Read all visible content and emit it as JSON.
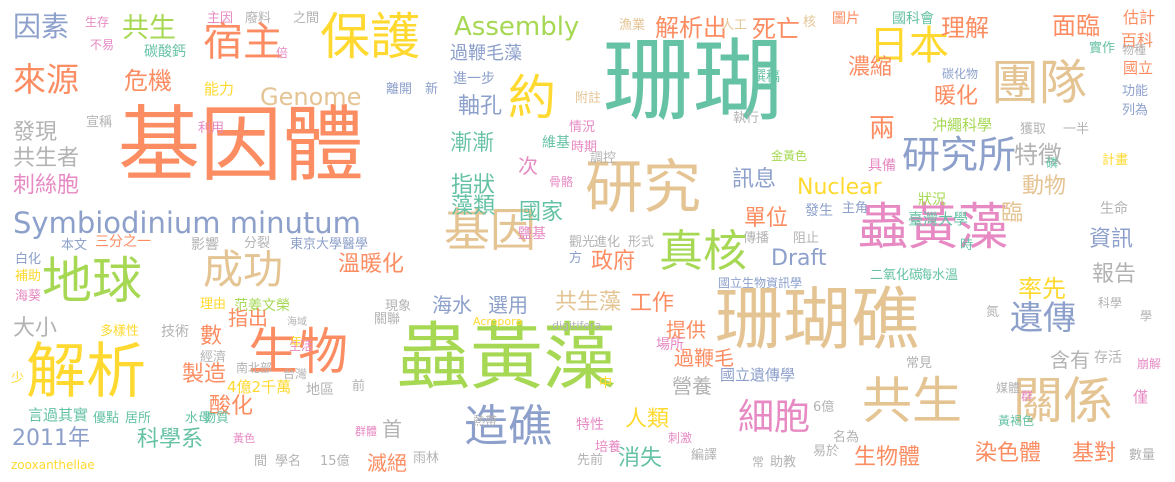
{
  "palette": {
    "orange": "#FC8D62",
    "green": "#66C2A5",
    "blue": "#8DA0CB",
    "pink": "#E78AC3",
    "lime": "#A6D854",
    "yellow": "#FFD92F",
    "tan": "#E5C494",
    "gray": "#B3B3B3"
  },
  "words": [
    {
      "text": "基因體",
      "color": "orange"
    },
    {
      "text": "珊瑚",
      "color": "green"
    },
    {
      "text": "珊瑚礁",
      "color": "tan"
    },
    {
      "text": "蟲黃藻",
      "color": "lime"
    },
    {
      "text": "蟲黃藻",
      "color": "pink"
    },
    {
      "text": "保護",
      "color": "yellow"
    },
    {
      "text": "宿主",
      "color": "orange"
    },
    {
      "text": "約",
      "color": "yellow"
    },
    {
      "text": "研究",
      "color": "tan"
    },
    {
      "text": "共生",
      "color": "tan"
    },
    {
      "text": "關係",
      "color": "tan"
    },
    {
      "text": "生物",
      "color": "orange"
    },
    {
      "text": "解析",
      "color": "yellow"
    },
    {
      "text": "地球",
      "color": "lime"
    },
    {
      "text": "團隊",
      "color": "tan"
    },
    {
      "text": "日本",
      "color": "yellow"
    },
    {
      "text": "研究所",
      "color": "blue"
    },
    {
      "text": "基因",
      "color": "tan"
    },
    {
      "text": "成功",
      "color": "tan"
    },
    {
      "text": "造礁",
      "color": "blue"
    },
    {
      "text": "細胞",
      "color": "pink"
    },
    {
      "text": "遺傳",
      "color": "blue"
    },
    {
      "text": "來源",
      "color": "orange"
    },
    {
      "text": "因素",
      "color": "blue"
    },
    {
      "text": "共生",
      "color": "lime"
    },
    {
      "text": "危機",
      "color": "orange"
    },
    {
      "text": "發現",
      "color": "gray"
    },
    {
      "text": "共生者",
      "color": "gray"
    },
    {
      "text": "刺絲胞",
      "color": "pink"
    },
    {
      "text": "Symbiodinium minutum",
      "color": "blue"
    },
    {
      "text": "Assembly",
      "color": "lime"
    },
    {
      "text": "Genome",
      "color": "tan"
    },
    {
      "text": "過鞭毛藻",
      "color": "blue"
    },
    {
      "text": "解析出",
      "color": "orange"
    },
    {
      "text": "死亡",
      "color": "orange"
    },
    {
      "text": "理解",
      "color": "orange"
    },
    {
      "text": "面臨",
      "color": "orange"
    },
    {
      "text": "估計",
      "color": "orange"
    },
    {
      "text": "百科",
      "color": "orange"
    },
    {
      "text": "生存",
      "color": "pink"
    },
    {
      "text": "不易",
      "color": "pink"
    },
    {
      "text": "碳酸鈣",
      "color": "green"
    },
    {
      "text": "主因",
      "color": "pink"
    },
    {
      "text": "廢料",
      "color": "gray"
    },
    {
      "text": "之間",
      "color": "gray"
    },
    {
      "text": "能力",
      "color": "yellow"
    },
    {
      "text": "倍",
      "color": "pink"
    },
    {
      "text": "宣稱",
      "color": "gray"
    },
    {
      "text": "利用",
      "color": "pink"
    },
    {
      "text": "漁業",
      "color": "tan"
    },
    {
      "text": "人工",
      "color": "tan"
    },
    {
      "text": "核",
      "color": "tan"
    },
    {
      "text": "圖片",
      "color": "orange"
    },
    {
      "text": "國科會",
      "color": "green"
    },
    {
      "text": "實作",
      "color": "green"
    },
    {
      "text": "物種",
      "color": "gray"
    },
    {
      "text": "撰稿",
      "color": "green"
    },
    {
      "text": "濃縮",
      "color": "orange"
    },
    {
      "text": "碳化物",
      "color": "blue"
    },
    {
      "text": "國立",
      "color": "orange"
    },
    {
      "text": "功能",
      "color": "blue"
    },
    {
      "text": "列為",
      "color": "blue"
    },
    {
      "text": "暖化",
      "color": "orange"
    },
    {
      "text": "兩",
      "color": "orange"
    },
    {
      "text": "沖繩科學",
      "color": "lime"
    },
    {
      "text": "獲取",
      "color": "gray"
    },
    {
      "text": "一半",
      "color": "gray"
    },
    {
      "text": "特徵",
      "color": "gray"
    },
    {
      "text": "軸孔",
      "color": "blue"
    },
    {
      "text": "進一步",
      "color": "blue"
    },
    {
      "text": "離開",
      "color": "blue"
    },
    {
      "text": "新",
      "color": "blue"
    },
    {
      "text": "附註",
      "color": "tan"
    },
    {
      "text": "情況",
      "color": "pink"
    },
    {
      "text": "時期",
      "color": "pink"
    },
    {
      "text": "執行",
      "color": "gray"
    },
    {
      "text": "漸漸",
      "color": "green"
    },
    {
      "text": "維基",
      "color": "green"
    },
    {
      "text": "調控",
      "color": "gray"
    },
    {
      "text": "次",
      "color": "pink"
    },
    {
      "text": "訊息",
      "color": "blue"
    },
    {
      "text": "金黃色",
      "color": "lime"
    },
    {
      "text": "具備",
      "color": "pink"
    },
    {
      "text": "磷",
      "color": "green"
    },
    {
      "text": "計畫",
      "color": "yellow"
    },
    {
      "text": "指狀",
      "color": "green"
    },
    {
      "text": "骨骼",
      "color": "pink"
    },
    {
      "text": "Nuclear",
      "color": "yellow"
    },
    {
      "text": "動物",
      "color": "tan"
    },
    {
      "text": "藻類",
      "color": "green"
    },
    {
      "text": "國家",
      "color": "green"
    },
    {
      "text": "單位",
      "color": "orange"
    },
    {
      "text": "發生",
      "color": "blue"
    },
    {
      "text": "主角",
      "color": "blue"
    },
    {
      "text": "臨",
      "color": "tan"
    },
    {
      "text": "狀況",
      "color": "lime"
    },
    {
      "text": "臺灣大學",
      "color": "green"
    },
    {
      "text": "生命",
      "color": "gray"
    },
    {
      "text": "資訊",
      "color": "blue"
    },
    {
      "text": "本文",
      "color": "blue"
    },
    {
      "text": "三分之一",
      "color": "orange"
    },
    {
      "text": "影響",
      "color": "gray"
    },
    {
      "text": "分裂",
      "color": "gray"
    },
    {
      "text": "東京大學醫學",
      "color": "blue"
    },
    {
      "text": "鹽基",
      "color": "pink"
    },
    {
      "text": "觀光",
      "color": "gray"
    },
    {
      "text": "方",
      "color": "blue"
    },
    {
      "text": "進化",
      "color": "gray"
    },
    {
      "text": "形式",
      "color": "gray"
    },
    {
      "text": "傳播",
      "color": "gray"
    },
    {
      "text": "阻止",
      "color": "gray"
    },
    {
      "text": "真核",
      "color": "lime"
    },
    {
      "text": "Draft",
      "color": "blue"
    },
    {
      "text": "時",
      "color": "green"
    },
    {
      "text": "白化",
      "color": "blue"
    },
    {
      "text": "補助",
      "color": "yellow"
    },
    {
      "text": "海葵",
      "color": "pink"
    },
    {
      "text": "政府",
      "color": "orange"
    },
    {
      "text": "溫暖化",
      "color": "orange"
    },
    {
      "text": "二氧化碳",
      "color": "green"
    },
    {
      "text": "海水溫",
      "color": "green"
    },
    {
      "text": "報告",
      "color": "gray"
    },
    {
      "text": "理由",
      "color": "yellow"
    },
    {
      "text": "范姜文榮",
      "color": "lime"
    },
    {
      "text": "率先",
      "color": "yellow"
    },
    {
      "text": "大小",
      "color": "gray"
    },
    {
      "text": "現象",
      "color": "gray"
    },
    {
      "text": "指出",
      "color": "orange"
    },
    {
      "text": "海水",
      "color": "blue"
    },
    {
      "text": "選用",
      "color": "blue"
    },
    {
      "text": "共生藻",
      "color": "tan"
    },
    {
      "text": "工作",
      "color": "orange"
    },
    {
      "text": "國立生物資訊學",
      "color": "blue"
    },
    {
      "text": "科學",
      "color": "gray"
    },
    {
      "text": "多樣性",
      "color": "yellow"
    },
    {
      "text": "技術",
      "color": "gray"
    },
    {
      "text": "海域",
      "color": "gray"
    },
    {
      "text": "關聯",
      "color": "gray"
    },
    {
      "text": "Acropora",
      "color": "yellow"
    },
    {
      "text": "digitifera",
      "color": "gray"
    },
    {
      "text": "提供",
      "color": "orange"
    },
    {
      "text": "氮",
      "color": "gray"
    },
    {
      "text": "學",
      "color": "gray"
    },
    {
      "text": "數",
      "color": "orange"
    },
    {
      "text": "經濟",
      "color": "gray"
    },
    {
      "text": "生活",
      "color": "pink"
    },
    {
      "text": "年",
      "color": "yellow"
    },
    {
      "text": "場所",
      "color": "pink"
    },
    {
      "text": "過鞭毛",
      "color": "orange"
    },
    {
      "text": "含有",
      "color": "gray"
    },
    {
      "text": "存活",
      "color": "gray"
    },
    {
      "text": "崩解",
      "color": "pink"
    },
    {
      "text": "少",
      "color": "yellow"
    },
    {
      "text": "製造",
      "color": "orange"
    },
    {
      "text": "南北部",
      "color": "gray"
    },
    {
      "text": "台灣",
      "color": "gray"
    },
    {
      "text": "常見",
      "color": "gray"
    },
    {
      "text": "國立遺傳學",
      "color": "blue"
    },
    {
      "text": "媒體",
      "color": "gray"
    },
    {
      "text": "4億2千萬",
      "color": "yellow"
    },
    {
      "text": "地區",
      "color": "gray"
    },
    {
      "text": "前",
      "color": "gray"
    },
    {
      "text": "中",
      "color": "yellow"
    },
    {
      "text": "營養",
      "color": "gray"
    },
    {
      "text": "群",
      "color": "pink"
    },
    {
      "text": "僅",
      "color": "pink"
    },
    {
      "text": "酸化",
      "color": "orange"
    },
    {
      "text": "言過其實",
      "color": "green"
    },
    {
      "text": "優點",
      "color": "green"
    },
    {
      "text": "居所",
      "color": "green"
    },
    {
      "text": "水母",
      "color": "green"
    },
    {
      "text": "物質",
      "color": "green"
    },
    {
      "text": "首",
      "color": "gray"
    },
    {
      "text": "熱帶",
      "color": "gray"
    },
    {
      "text": "特性",
      "color": "pink"
    },
    {
      "text": "人類",
      "color": "yellow"
    },
    {
      "text": "6億",
      "color": "gray"
    },
    {
      "text": "黃褐色",
      "color": "green"
    },
    {
      "text": "2011年",
      "color": "blue"
    },
    {
      "text": "科學系",
      "color": "green"
    },
    {
      "text": "黃色",
      "color": "pink"
    },
    {
      "text": "群體",
      "color": "pink"
    },
    {
      "text": "培養",
      "color": "pink"
    },
    {
      "text": "刺激",
      "color": "pink"
    },
    {
      "text": "名為",
      "color": "gray"
    },
    {
      "text": "生物體",
      "color": "orange"
    },
    {
      "text": "染色體",
      "color": "orange"
    },
    {
      "text": "基對",
      "color": "orange"
    },
    {
      "text": "消失",
      "color": "green"
    },
    {
      "text": "助教",
      "color": "gray"
    },
    {
      "text": "易於",
      "color": "gray"
    },
    {
      "text": "zooxanthellae",
      "color": "yellow"
    },
    {
      "text": "間",
      "color": "gray"
    },
    {
      "text": "學名",
      "color": "gray"
    },
    {
      "text": "15億",
      "color": "gray"
    },
    {
      "text": "滅絕",
      "color": "orange"
    },
    {
      "text": "雨林",
      "color": "gray"
    },
    {
      "text": "先前",
      "color": "gray"
    },
    {
      "text": "編譯",
      "color": "gray"
    },
    {
      "text": "常",
      "color": "gray"
    },
    {
      "text": "數量",
      "color": "gray"
    }
  ]
}
